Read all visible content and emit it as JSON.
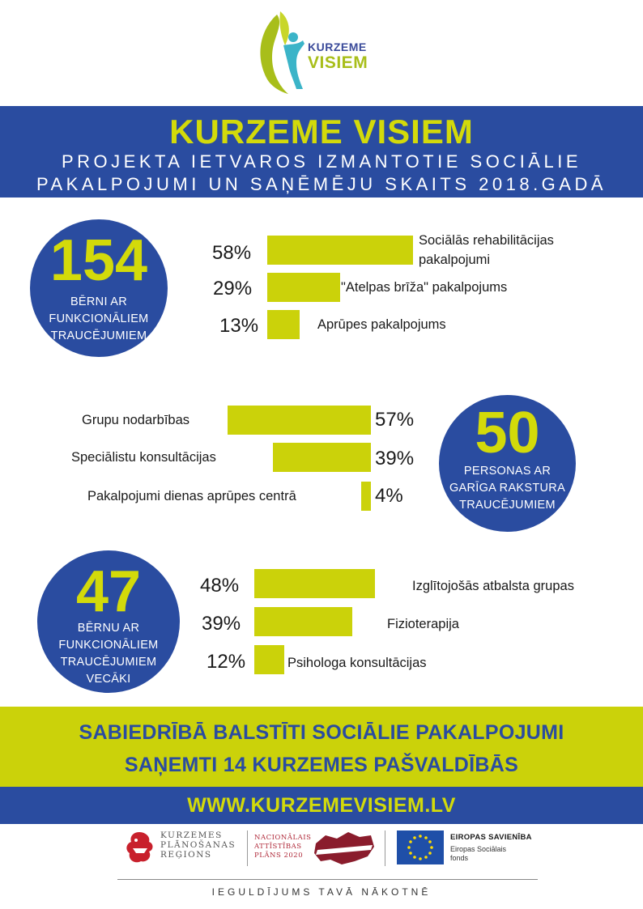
{
  "logo": {
    "line1": "KURZEME",
    "line2": "VISIEM"
  },
  "header": {
    "title": "KURZEME VISIEM",
    "subtitle_line1": "PROJEKTA IETVAROS IZMANTOTIE SOCIĀLIE",
    "subtitle_line2": "PAKALPOJUMI UN SAŅĒMĒJU SKAITS 2018.GADĀ"
  },
  "sections": [
    {
      "number": "154",
      "caption": [
        "BĒRNI AR",
        "FUNKCIONĀLIEM",
        "TRAUCĒJUMIEM"
      ],
      "bars": [
        {
          "pct": "58%",
          "value": 58,
          "label": [
            "Sociālās rehabilitācijas",
            "pakalpojumi"
          ]
        },
        {
          "pct": "29%",
          "value": 29,
          "label": [
            "\"Atelpas brīža\" pakalpojums"
          ]
        },
        {
          "pct": "13%",
          "value": 13,
          "label": [
            "Aprūpes pakalpojums"
          ]
        }
      ]
    },
    {
      "number": "50",
      "caption": [
        "PERSONAS AR",
        "GARĪGA RAKSTURA",
        "TRAUCĒJUMIEM"
      ],
      "bars": [
        {
          "pct": "57%",
          "value": 57,
          "label": [
            "Grupu nodarbības"
          ]
        },
        {
          "pct": "39%",
          "value": 39,
          "label": [
            "Speciālistu konsultācijas"
          ]
        },
        {
          "pct": "4%",
          "value": 4,
          "label": [
            "Pakalpojumi dienas aprūpes centrā"
          ]
        }
      ]
    },
    {
      "number": "47",
      "caption": [
        "BĒRNU AR",
        "FUNKCIONĀLIEM",
        "TRAUCĒJUMIEM",
        "VECĀKI"
      ],
      "bars": [
        {
          "pct": "48%",
          "value": 48,
          "label": [
            "Izglītojošās atbalsta grupas"
          ]
        },
        {
          "pct": "39%",
          "value": 39,
          "label": [
            "Fizioterapija"
          ]
        },
        {
          "pct": "12%",
          "value": 12,
          "label": [
            "Psihologa konsultācijas"
          ]
        }
      ]
    }
  ],
  "banner": {
    "line1": "SABIEDRĪBĀ BALSTĪTI SOCIĀLIE PAKALPOJUMI",
    "line2": "SAŅEMTI 14 KURZEMES PAŠVALDĪBĀS"
  },
  "website": "WWW.KURZEMEVISIEM.LV",
  "partners": {
    "kpr": [
      "KURZEMES",
      "PLĀNOŠANAS",
      "REĢIONS"
    ],
    "nap": [
      "NACIONĀLAIS",
      "ATTĪSTĪBAS",
      "PLĀNS 2020"
    ],
    "eu_title": "EIROPAS SAVIENĪBA",
    "eu_sub": [
      "Eiropas Sociālais",
      "fonds"
    ]
  },
  "motto": "IEGULDĪJUMS TAVĀ NĀKOTNĒ",
  "colors": {
    "blue": "#2a4ca0",
    "yellow": "#d3da0a",
    "bar": "#cbd20a"
  }
}
